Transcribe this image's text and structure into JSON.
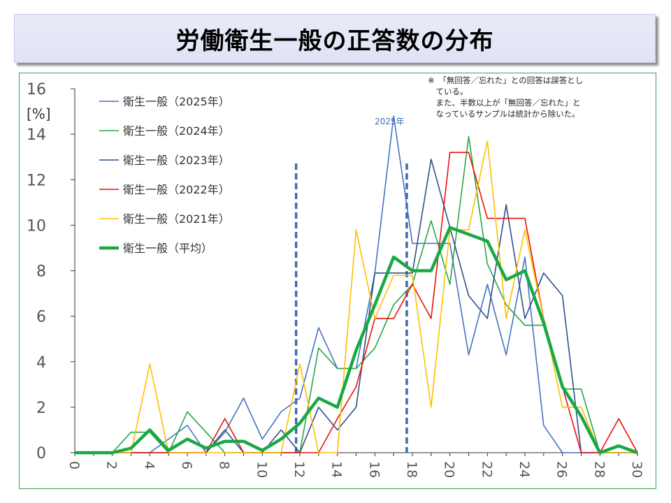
{
  "title": "労働衛生一般の正答数の分布",
  "note_lines": [
    "※　「無回答／忘れた」との回答は誤答とし",
    "　ている。",
    "　また、半数以上が「無回答／忘れた」と",
    "　なっているサンプルは統計から除いた。"
  ],
  "chart_data": {
    "type": "line",
    "title": "",
    "xlabel": "",
    "ylabel": "[%]",
    "xlim": [
      0,
      30
    ],
    "ylim": [
      0,
      16
    ],
    "x_ticks": [
      0,
      2,
      4,
      6,
      8,
      10,
      12,
      14,
      16,
      18,
      20,
      22,
      24,
      26,
      28,
      30
    ],
    "y_ticks": [
      0,
      2,
      4,
      6,
      8,
      10,
      12,
      14,
      16
    ],
    "x_tick_labels": [
      "0",
      "2",
      "4",
      "6",
      "8",
      "10",
      "12",
      "14",
      "16",
      "18",
      "20",
      "22",
      "24",
      "26",
      "28",
      "30"
    ],
    "y_tick_labels": [
      "0",
      "2",
      "4",
      "6",
      "8",
      "10",
      "12",
      "14",
      "16"
    ],
    "x": [
      0,
      1,
      2,
      3,
      4,
      5,
      6,
      7,
      8,
      9,
      10,
      11,
      12,
      13,
      14,
      15,
      16,
      17,
      18,
      19,
      20,
      21,
      22,
      23,
      24,
      25,
      26,
      27,
      28,
      29,
      30
    ],
    "series": [
      {
        "name": "衛生一般（2025年）",
        "color": "#4472c4",
        "width": 1.6,
        "values": [
          0,
          0,
          0,
          0,
          0,
          0.6,
          1.2,
          0,
          0.9,
          2.4,
          0.6,
          1.8,
          2.4,
          5.5,
          3.7,
          3.7,
          7.9,
          14.8,
          9.2,
          9.2,
          9.2,
          4.3,
          7.4,
          4.3,
          8.6,
          1.2,
          0,
          0,
          0,
          0,
          0
        ]
      },
      {
        "name": "衛生一般（2024年）",
        "color": "#28a745",
        "width": 1.6,
        "values": [
          0,
          0,
          0,
          0.9,
          0.9,
          0,
          1.8,
          0.9,
          0,
          0,
          0,
          0,
          0,
          4.6,
          3.7,
          3.7,
          4.6,
          6.5,
          7.4,
          10.2,
          7.4,
          13.9,
          8.3,
          6.5,
          5.6,
          5.6,
          2.8,
          2.8,
          0,
          0,
          0
        ]
      },
      {
        "name": "衛生一般（2023年）",
        "color": "#2f4f8a",
        "width": 1.6,
        "values": [
          0,
          0,
          0,
          0,
          0,
          0,
          0,
          0,
          1,
          0,
          0,
          1,
          0,
          2,
          1,
          2,
          7.9,
          7.9,
          7.9,
          12.9,
          9.9,
          6.9,
          5.9,
          10.9,
          5.9,
          7.9,
          6.9,
          0,
          0,
          0,
          0
        ]
      },
      {
        "name": "衛生一般（2022年）",
        "color": "#e8120c",
        "width": 1.6,
        "values": [
          0,
          0,
          0,
          0,
          0,
          0,
          0,
          0,
          1.5,
          0,
          0,
          0,
          0,
          0,
          1.5,
          2.9,
          5.9,
          5.9,
          7.4,
          5.9,
          13.2,
          13.2,
          10.3,
          10.3,
          10.3,
          5.9,
          2.9,
          0,
          0,
          1.5,
          0
        ]
      },
      {
        "name": "衛生一般（2021年）",
        "color": "#ffc000",
        "width": 1.6,
        "values": [
          0,
          0,
          0,
          0,
          3.9,
          0,
          0,
          0,
          0,
          0,
          0,
          0,
          3.9,
          0,
          0,
          9.8,
          5.9,
          7.8,
          7.8,
          2,
          9.8,
          9.8,
          13.7,
          5.9,
          9.8,
          5.9,
          2,
          2,
          0,
          0,
          0
        ]
      },
      {
        "name": "衛生一般（平均）",
        "color": "#1aa845",
        "width": 4.5,
        "values": [
          0,
          0,
          0,
          0.2,
          1,
          0.1,
          0.6,
          0.2,
          0.5,
          0.5,
          0.1,
          0.6,
          1.3,
          2.4,
          2,
          4.5,
          6.5,
          8.6,
          8,
          8,
          9.9,
          9.6,
          9.3,
          7.6,
          8,
          5.7,
          2.9,
          1.6,
          0,
          0.3,
          0
        ]
      }
    ],
    "vlines": [
      {
        "x": 11.8,
        "color": "#4169b5",
        "label": ""
      },
      {
        "x": 17.7,
        "color": "#4169b5",
        "label": "2025年"
      }
    ],
    "legend": "top-left"
  }
}
